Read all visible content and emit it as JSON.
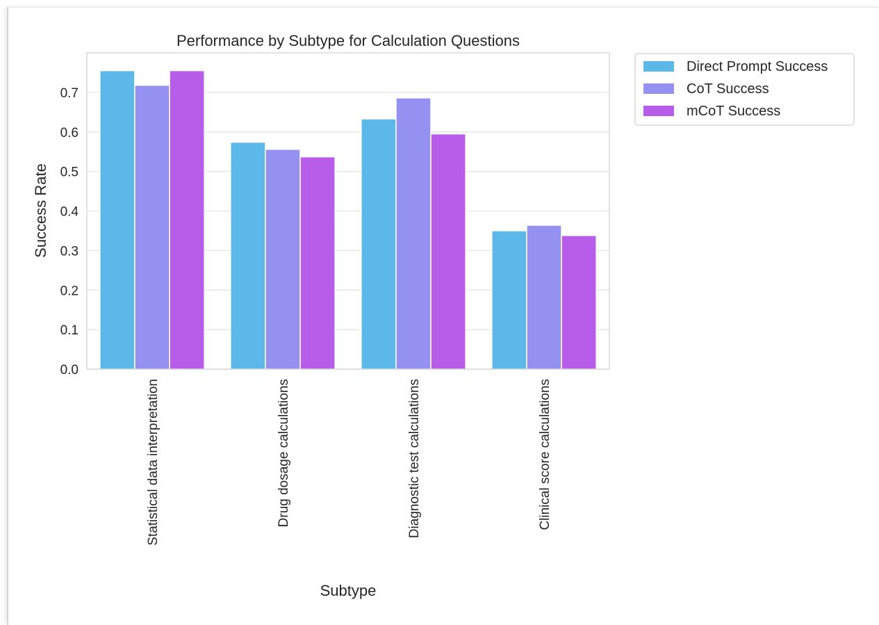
{
  "chart_data": {
    "type": "bar",
    "title": "Performance by Subtype for Calculation Questions",
    "xlabel": "Subtype",
    "ylabel": "Success Rate",
    "ylim": [
      0,
      0.8
    ],
    "yticks": [
      0.0,
      0.1,
      0.2,
      0.3,
      0.4,
      0.5,
      0.6,
      0.7
    ],
    "ytick_labels": [
      "0.0",
      "0.1",
      "0.2",
      "0.3",
      "0.4",
      "0.5",
      "0.6",
      "0.7"
    ],
    "grid": true,
    "legend_position": "outside-top-right",
    "categories": [
      "Statistical data interpretation",
      "Drug dosage calculations",
      "Diagnostic test calculations",
      "Clinical score calculations"
    ],
    "series": [
      {
        "name": "Direct Prompt Success",
        "color": "#5cb8e8",
        "values": [
          0.755,
          0.574,
          0.633,
          0.35
        ]
      },
      {
        "name": "CoT Success",
        "color": "#9591f0",
        "values": [
          0.718,
          0.556,
          0.686,
          0.364
        ]
      },
      {
        "name": "mCoT Success",
        "color": "#b85cea",
        "values": [
          0.755,
          0.537,
          0.595,
          0.338
        ]
      }
    ]
  }
}
